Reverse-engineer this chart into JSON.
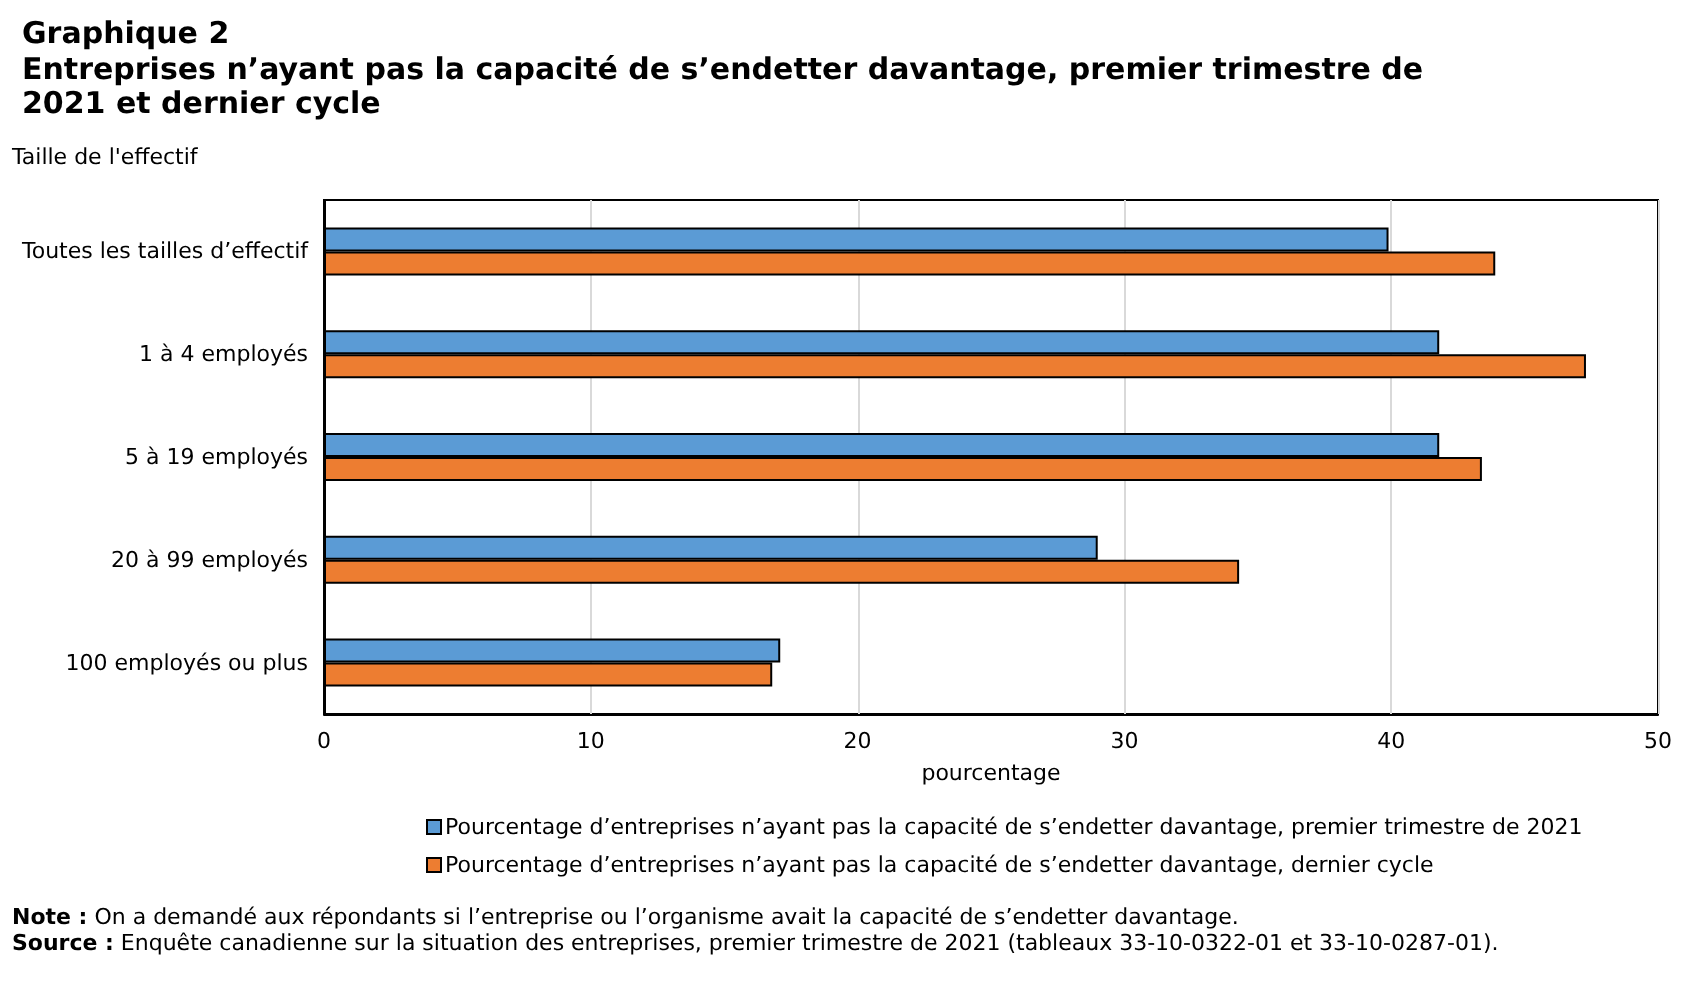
{
  "chart_data": {
    "type": "bar",
    "orientation": "horizontal",
    "title": "Graphique 2",
    "subtitle": "Entreprises n’ayant pas la capacité de s’endetter davantage, premier trimestre de 2021 et dernier cycle",
    "ylabel": "Taille de l'effectif",
    "xlabel": "pourcentage",
    "categories": [
      "Toutes les tailles d’effectif",
      "1 à 4 employés",
      "5 à 19 employés",
      "20 à 99 employés",
      "100 employés ou plus"
    ],
    "series": [
      {
        "name": "Pourcentage d’entreprises n’ayant pas la capacité de s’endetter davantage, premier trimestre de 2021",
        "color": "#5b9bd5",
        "values": [
          39.9,
          41.8,
          41.8,
          29.0,
          17.1
        ]
      },
      {
        "name": "Pourcentage d’entreprises n’ayant pas la capacité de s’endetter davantage, dernier cycle",
        "color": "#ed7d31",
        "values": [
          43.9,
          47.3,
          43.4,
          34.3,
          16.8
        ]
      }
    ],
    "xlim": [
      0,
      50
    ],
    "xticks": [
      0,
      10,
      20,
      30,
      40,
      50
    ],
    "grid": "x",
    "legend": "bottom",
    "annotations": [
      "Note : On a demandé aux répondants si l’entreprise ou l’organisme avait la capacité de s’endetter davantage.",
      "Source : Enquête canadienne sur la situation des entreprises, premier trimestre de 2021 (tableaux 33-10-0322-01 et 33-10-0287-01)."
    ]
  }
}
